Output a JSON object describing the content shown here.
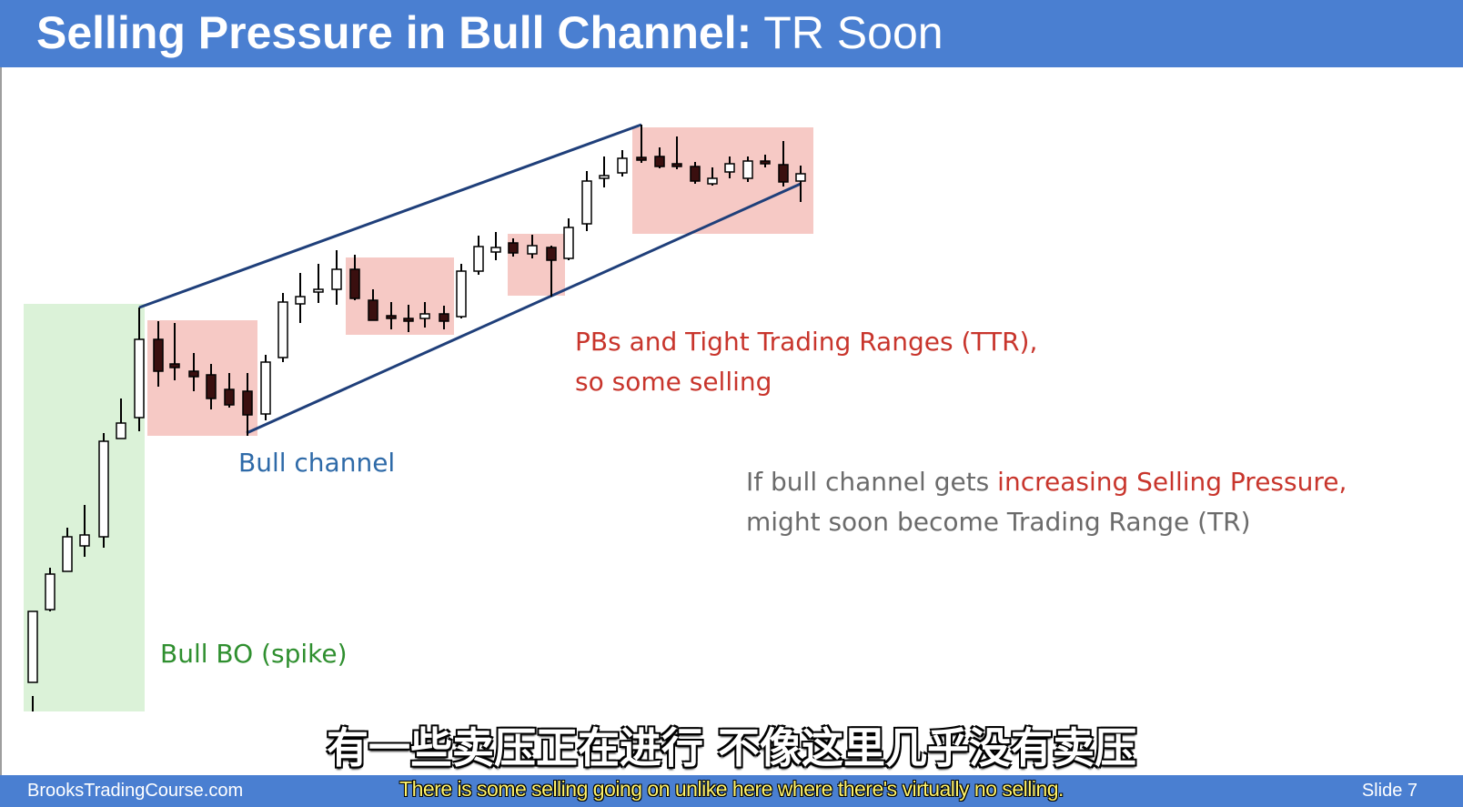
{
  "slide": {
    "title_bold": "Selling Pressure in Bull Channel:",
    "title_light": " TR Soon",
    "footer_site": "BrooksTradingCourse.com",
    "footer_slide": "Slide  7"
  },
  "annotations": {
    "bull_channel": "Bull channel",
    "bull_bo": "Bull BO (spike)",
    "pbs_line1": "PBs and Tight Trading Ranges (TTR),",
    "pbs_line2": "so some selling",
    "if_prefix": "If bull channel gets ",
    "if_red": "increasing Selling Pressure,",
    "if_line2": "might soon become Trading Range (TR)"
  },
  "subtitles": {
    "chinese": "有一些卖压正在进行 不像这里几乎没有卖压",
    "english": "There is some selling going on  unlike here where there's virtually no selling."
  },
  "colors": {
    "header_blue": "#4a7fd1",
    "spike_zone_green": "#dbf2d8",
    "pause_zone_pink": "#f6c9c5",
    "channel_line": "#1f3f7a",
    "bear_candle": "#3a0f0f",
    "annotation_blue": "#2e6aa8",
    "annotation_green": "#2f8f2f",
    "annotation_red": "#c8352c",
    "annotation_gray": "#6b6b6b",
    "subtitle_yellow": "#fff36a"
  }
}
